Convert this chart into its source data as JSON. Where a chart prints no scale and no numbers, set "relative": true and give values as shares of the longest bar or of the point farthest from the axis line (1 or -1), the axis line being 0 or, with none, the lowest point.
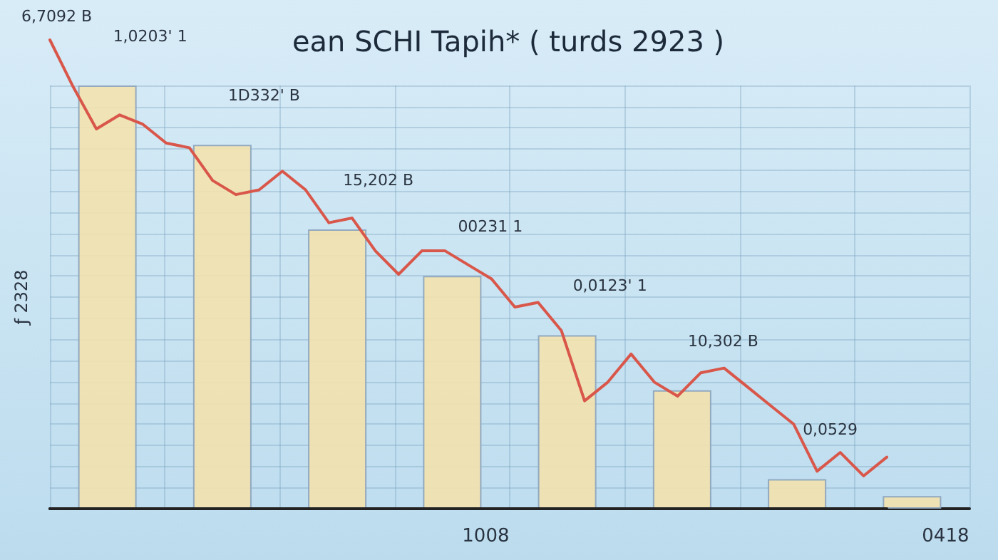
{
  "chart_data": [
    {
      "type": "bar",
      "title": "ean SCHI Tapih* ( turds 2923 )",
      "ylabel": "ƒ 2328",
      "relative": true,
      "grid": true,
      "categories": [
        null,
        null,
        null,
        null,
        null,
        null,
        null,
        null
      ],
      "values": [
        1,
        0.86,
        0.66,
        0.55,
        0.41,
        0.28,
        0.07,
        0.03
      ],
      "color": "#f3e2ae",
      "annotations": [
        "1,0203' 1",
        "1D332' B",
        "15,202 B",
        "00231 1",
        "0,0123' 1",
        "10,302 B",
        "0,0529",
        "1008",
        "0418"
      ]
    },
    {
      "type": "line",
      "relative": true,
      "color": "#d9574a",
      "line_style": "solid",
      "categories": [
        null,
        null,
        null,
        null,
        null,
        null,
        null,
        null,
        null,
        null,
        null,
        null,
        null,
        null,
        null,
        null,
        null,
        null,
        null,
        null,
        null,
        null,
        null,
        null,
        null,
        null,
        null,
        null,
        null,
        null,
        null,
        null,
        null,
        null,
        null,
        null,
        null
      ],
      "values": [
        1.0,
        0.9,
        0.81,
        0.84,
        0.82,
        0.78,
        0.77,
        0.7,
        0.67,
        0.68,
        0.72,
        0.68,
        0.61,
        0.62,
        0.55,
        0.5,
        0.55,
        0.55,
        0.52,
        0.49,
        0.43,
        0.44,
        0.38,
        0.23,
        0.27,
        0.33,
        0.27,
        0.24,
        0.29,
        0.3,
        0.26,
        0.22,
        0.18,
        0.08,
        0.12,
        0.07,
        0.11
      ],
      "annotations": [
        "6,7092 B"
      ]
    }
  ]
}
